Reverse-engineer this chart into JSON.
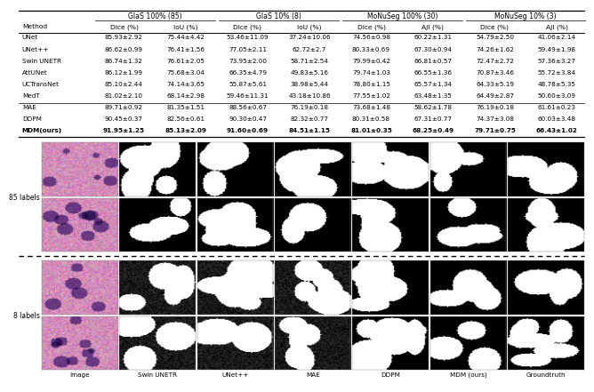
{
  "table": {
    "rows_group1": [
      [
        "UNet",
        "85.93±2.92",
        "75.44±4.42",
        "53.46±11.09",
        "37.24±10.06",
        "74.56±0.98",
        "60.22±1.31",
        "54.79±2.50",
        "41.06±2.14"
      ],
      [
        "UNet++",
        "86.62±0.99",
        "76.41±1.56",
        "77.05±2.11",
        "62.72±2.7",
        "80.33±0.69",
        "67.30±0.94",
        "74.26±1.62",
        "59.49±1.98"
      ],
      [
        "Swin UNETR",
        "86.74±1.32",
        "76.61±2.05",
        "73.95±2.00",
        "58.71±2.54",
        "79.99±0.42",
        "66.81±0.57",
        "72.47±2.72",
        "57.36±3.27"
      ],
      [
        "AttUNet",
        "86.12±1.99",
        "75.68±3.04",
        "66.35±4.79",
        "49.83±5.16",
        "79.74±1.03",
        "66.55±1.36",
        "70.87±3.46",
        "55.72±3.84"
      ],
      [
        "UCTransNet",
        "85.10±2.44",
        "74.14±3.65",
        "55.87±5.61",
        "38.98±5.44",
        "78.80±1.15",
        "65.57±1.34",
        "64.33±5.19",
        "48.78±5.35"
      ],
      [
        "MedT",
        "81.02±2.10",
        "68.14±2.98",
        "59.46±11.31",
        "43.18±10.86",
        "77.55±1.02",
        "63.48±1.35",
        "64.49±2.87",
        "50.60±3.09"
      ]
    ],
    "rows_group2": [
      [
        "MAE",
        "89.71±0.92",
        "81.35±1.51",
        "88.56±0.67",
        "76.19±0.18",
        "73.68±1.48",
        "58.62±1.78",
        "76.19±0.18",
        "61.61±0.23"
      ],
      [
        "DDPM",
        "90.45±0.37",
        "82.56±0.61",
        "90.30±0.47",
        "82.32±0.77",
        "80.31±0.58",
        "67.31±0.77",
        "74.37±3.08",
        "60.03±3.48"
      ],
      [
        "MDM(ours)",
        "91.95±1.25",
        "85.13±2.09",
        "91.60±0.69",
        "84.51±1.15",
        "81.01±0.35",
        "68.25±0.49",
        "79.71±0.75",
        "66.43±1.02"
      ]
    ]
  },
  "group_headers": [
    "GlaS 100% (85)",
    "GlaS 10% (8)",
    "MoNuSeg 100% (30)",
    "MoNuSeg 10% (3)"
  ],
  "sub_headers": [
    "Dice (%)",
    "IoU (%)",
    "Dice (%)",
    "IoU (%)",
    "Dice (%)",
    "AJI (%)",
    "Dice (%)",
    "AJI (%)"
  ],
  "image_labels_bottom": [
    "Image",
    "Swin UNETR",
    "UNet++",
    "MAE",
    "DDPM",
    "MDM (ours)",
    "Groundtruth"
  ],
  "row_labels_left": [
    "85 labels",
    "8 labels"
  ],
  "background_color": "#ffffff"
}
